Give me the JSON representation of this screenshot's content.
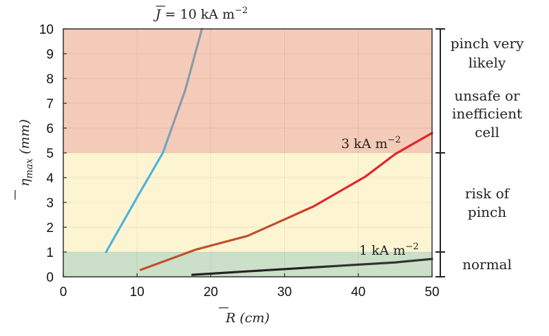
{
  "chart_data": {
    "type": "line",
    "xlabel_main": "R",
    "xlabel_unit": "(cm)",
    "ylabel_main": "η",
    "ylabel_sub": "max",
    "ylabel_unit": "(mm)",
    "xlim": [
      0,
      50
    ],
    "ylim": [
      0,
      10
    ],
    "xticks": [
      "0",
      "10",
      "20",
      "30",
      "40",
      "50"
    ],
    "yticks": [
      "0",
      "1",
      "2",
      "3",
      "4",
      "5",
      "6",
      "7",
      "8",
      "9",
      "10"
    ],
    "regions": [
      {
        "name": "normal",
        "from": 0,
        "to": 1,
        "color": "#ccdfc8"
      },
      {
        "name": "risk",
        "from": 1,
        "to": 5,
        "color": "#fdf5d2"
      },
      {
        "name": "unsafe",
        "from": 5,
        "to": 10,
        "color": "#f4cbb8"
      }
    ],
    "series": [
      {
        "name": "10 kA/m2",
        "label_parts": [
          "J",
          " = 10 kA m",
          "−2"
        ],
        "color_start": "#4db3df",
        "color_end": "#8a9aa8",
        "x": [
          5.8,
          10,
          13.5,
          16.5,
          18.8
        ],
        "y": [
          1.0,
          3.2,
          5.0,
          7.5,
          10.0
        ]
      },
      {
        "name": "3 kA/m2",
        "label_parts": [
          "3 kA m",
          "−2"
        ],
        "color_start": "#c0502a",
        "color_end": "#e0262a",
        "x": [
          10.5,
          18,
          25,
          34,
          41,
          45,
          50
        ],
        "y": [
          0.28,
          1.1,
          1.65,
          2.85,
          4.05,
          4.95,
          5.8
        ]
      },
      {
        "name": "1 kA/m2",
        "label_parts": [
          "1 kA m",
          "−2"
        ],
        "color_start": "#222222",
        "color_end": "#333333",
        "x": [
          17.5,
          25,
          35,
          45,
          50
        ],
        "y": [
          0.08,
          0.22,
          0.4,
          0.58,
          0.72
        ]
      }
    ],
    "zone_labels": [
      {
        "lines": [
          "pinch very",
          "likely"
        ]
      },
      {
        "lines": [
          "unsafe or",
          "inefficient",
          "cell"
        ]
      },
      {
        "lines": [
          "risk of",
          "pinch"
        ]
      },
      {
        "lines": [
          "normal"
        ]
      }
    ]
  }
}
